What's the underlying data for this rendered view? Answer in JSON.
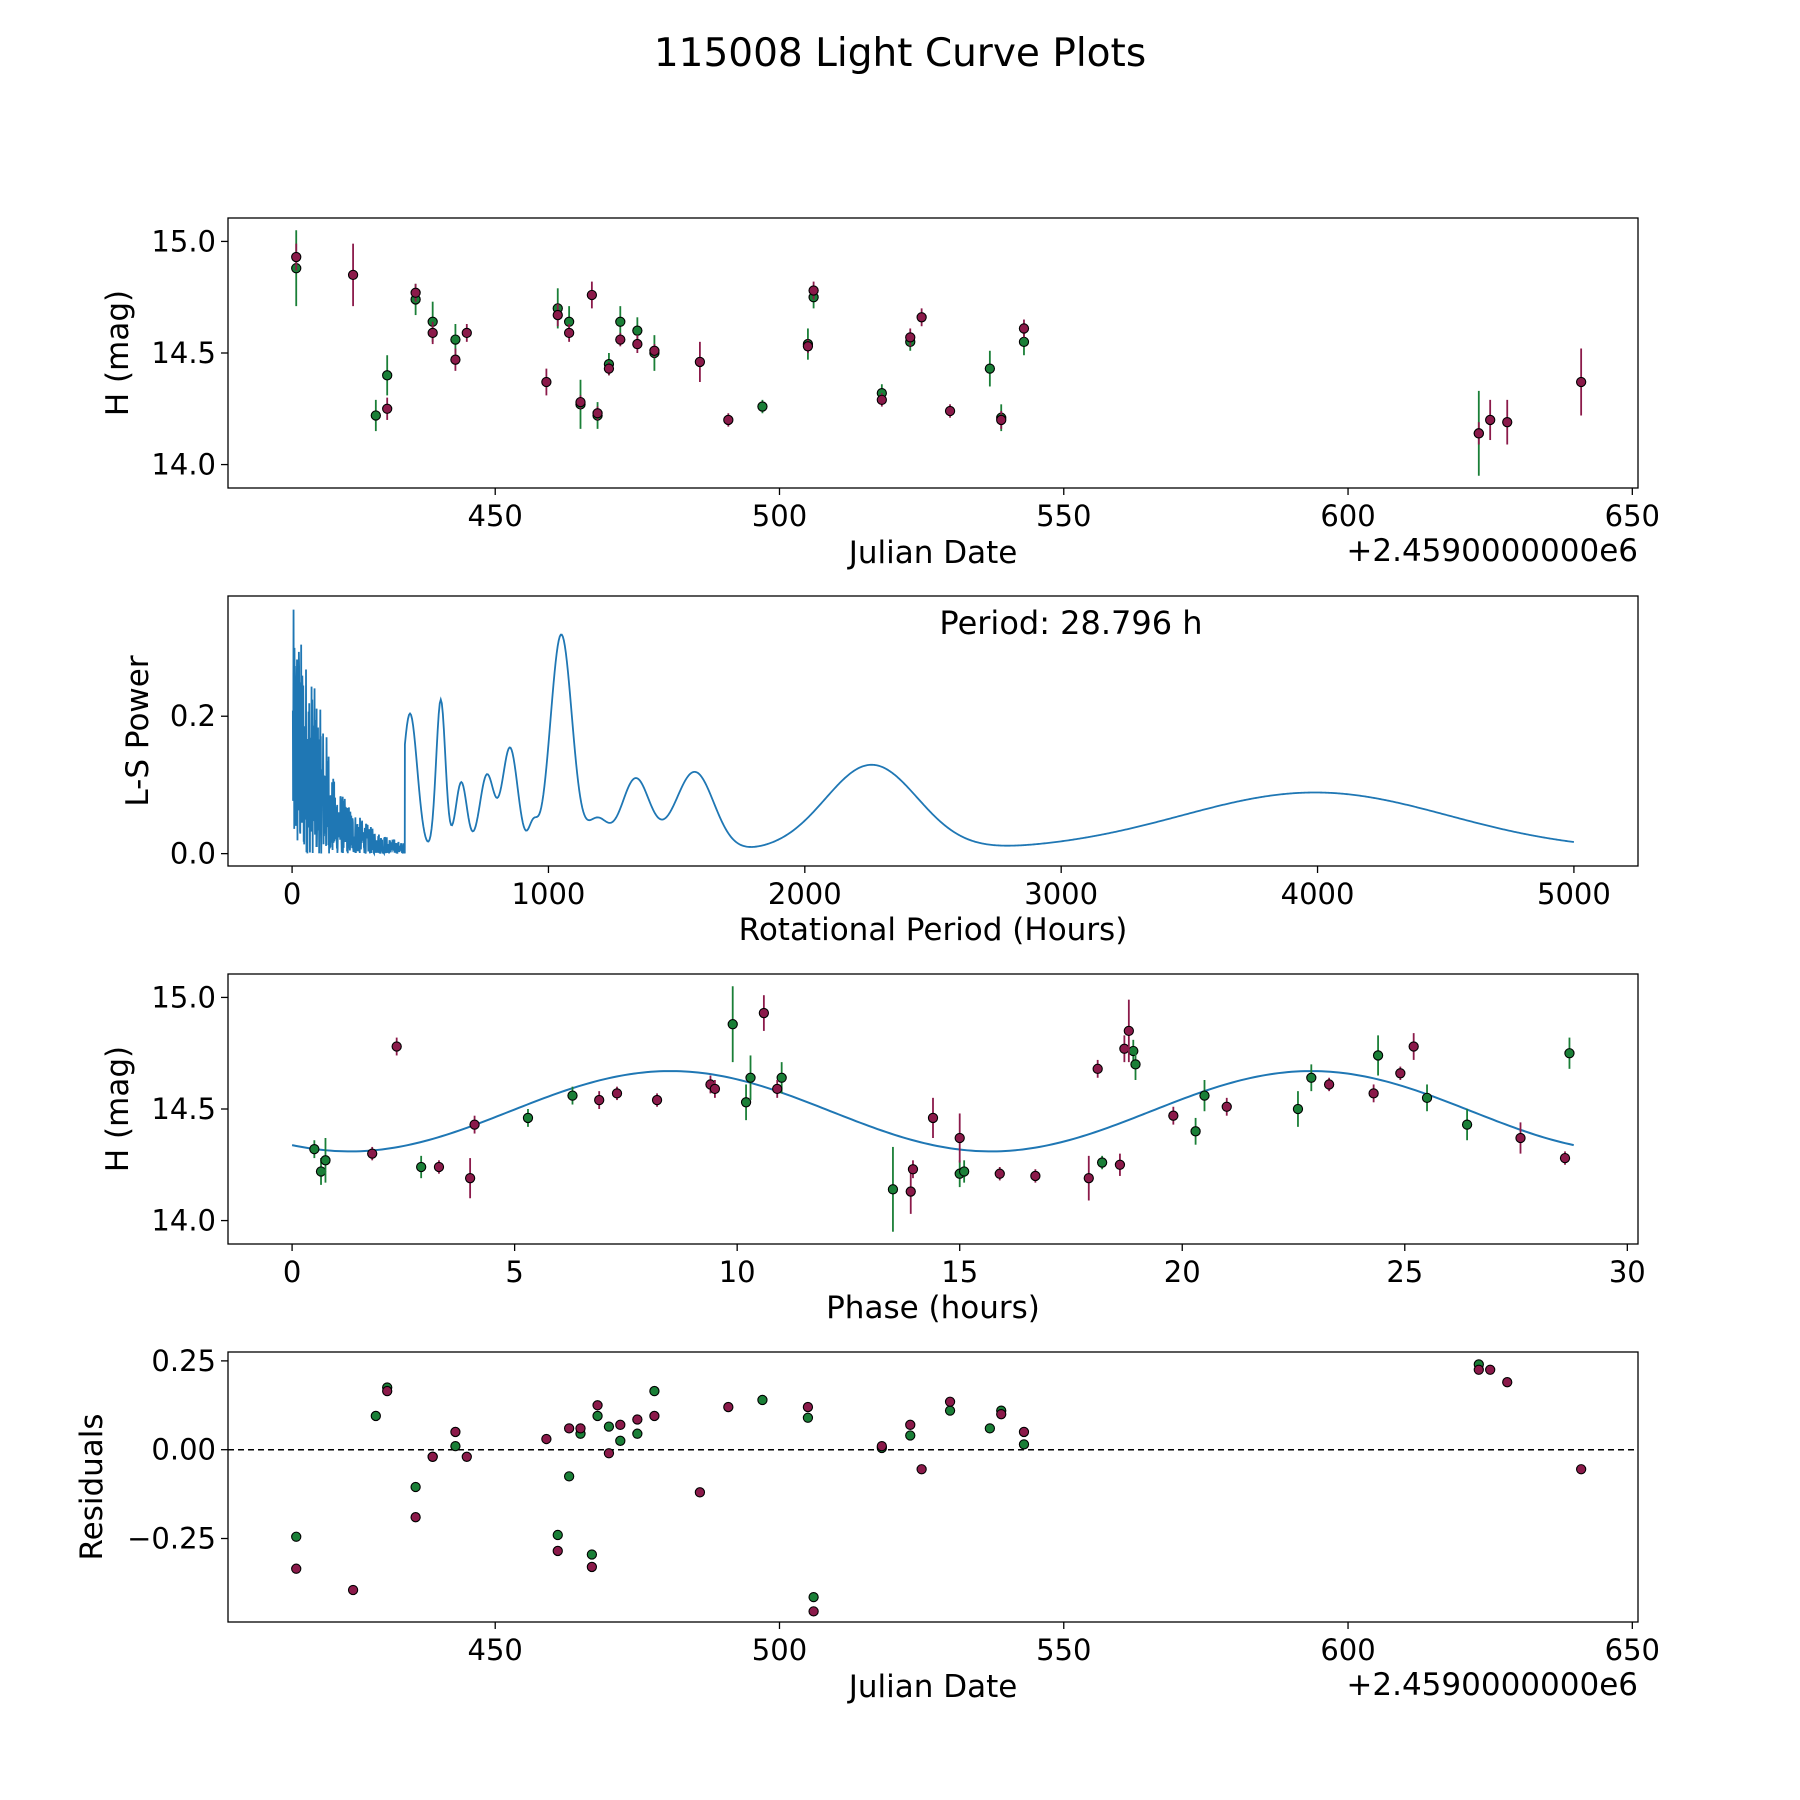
{
  "figure": {
    "title": "115008 Light Curve Plots"
  },
  "colors": {
    "green": "#1a7f37",
    "magenta": "#8b1a4a",
    "model": "#1f77b4",
    "axis": "#000000"
  },
  "chart_data": [
    {
      "name": "light-curve",
      "type": "scatter",
      "xlabel": "Julian Date",
      "ylabel": "H (mag)",
      "offset_text": "+2.4590000000e6",
      "xlim": [
        403,
        651
      ],
      "ylim": [
        13.895,
        15.105
      ],
      "xticks": [
        450,
        500,
        550,
        600,
        650
      ],
      "yticks": [
        14.0,
        14.5,
        15.0
      ],
      "xtick_labels": [
        "450",
        "500",
        "550",
        "600",
        "650"
      ],
      "ytick_labels": [
        "14.0",
        "14.5",
        "15.0"
      ],
      "series": [
        {
          "name": "green",
          "color_key": "green",
          "points": [
            [
              415,
              14.88,
              0.17
            ],
            [
              429,
              14.22,
              0.07
            ],
            [
              431,
              14.4,
              0.09
            ],
            [
              436,
              14.74,
              0.07
            ],
            [
              439,
              14.64,
              0.09
            ],
            [
              443,
              14.56,
              0.07
            ],
            [
              461,
              14.7,
              0.09
            ],
            [
              463,
              14.64,
              0.07
            ],
            [
              465,
              14.27,
              0.11
            ],
            [
              468,
              14.22,
              0.06
            ],
            [
              470,
              14.45,
              0.05
            ],
            [
              472,
              14.64,
              0.07
            ],
            [
              475,
              14.6,
              0.06
            ],
            [
              478,
              14.5,
              0.08
            ],
            [
              497,
              14.26,
              0.03
            ],
            [
              505,
              14.54,
              0.07
            ],
            [
              506,
              14.75,
              0.05
            ],
            [
              518,
              14.32,
              0.04
            ],
            [
              523,
              14.55,
              0.04
            ],
            [
              537,
              14.43,
              0.08
            ],
            [
              539,
              14.21,
              0.06
            ],
            [
              543,
              14.55,
              0.06
            ],
            [
              623,
              14.14,
              0.19
            ]
          ]
        },
        {
          "name": "magenta",
          "color_key": "magenta",
          "points": [
            [
              415,
              14.93,
              0.06
            ],
            [
              425,
              14.85,
              0.14
            ],
            [
              431,
              14.25,
              0.05
            ],
            [
              436,
              14.77,
              0.04
            ],
            [
              439,
              14.59,
              0.05
            ],
            [
              443,
              14.47,
              0.05
            ],
            [
              445,
              14.59,
              0.04
            ],
            [
              459,
              14.37,
              0.06
            ],
            [
              461,
              14.67,
              0.05
            ],
            [
              463,
              14.59,
              0.04
            ],
            [
              465,
              14.28,
              0.03
            ],
            [
              467,
              14.76,
              0.06
            ],
            [
              468,
              14.23,
              0.03
            ],
            [
              470,
              14.43,
              0.03
            ],
            [
              472,
              14.56,
              0.03
            ],
            [
              475,
              14.54,
              0.04
            ],
            [
              478,
              14.51,
              0.03
            ],
            [
              486,
              14.46,
              0.09
            ],
            [
              491,
              14.2,
              0.03
            ],
            [
              505,
              14.53,
              0.03
            ],
            [
              506,
              14.78,
              0.04
            ],
            [
              518,
              14.29,
              0.03
            ],
            [
              523,
              14.57,
              0.04
            ],
            [
              525,
              14.66,
              0.04
            ],
            [
              530,
              14.24,
              0.03
            ],
            [
              539,
              14.2,
              0.04
            ],
            [
              543,
              14.61,
              0.04
            ],
            [
              623,
              14.14,
              0.05
            ],
            [
              625,
              14.2,
              0.09
            ],
            [
              628,
              14.19,
              0.1
            ],
            [
              641,
              14.37,
              0.15
            ]
          ]
        }
      ]
    },
    {
      "name": "periodogram",
      "type": "line",
      "xlabel": "Rotational Period (Hours)",
      "ylabel": "L-S Power",
      "annotation": "Period: 28.796 h",
      "xlim": [
        -250,
        5250
      ],
      "ylim": [
        -0.018,
        0.375
      ],
      "xticks": [
        0,
        1000,
        2000,
        3000,
        4000,
        5000
      ],
      "yticks": [
        0.0,
        0.2
      ],
      "xtick_labels": [
        "0",
        "1000",
        "2000",
        "3000",
        "4000",
        "5000"
      ],
      "ytick_labels": [
        "0.0",
        "0.2"
      ],
      "smooth_peaks": [
        [
          460,
          0.2,
          28
        ],
        [
          580,
          0.22,
          18
        ],
        [
          660,
          0.1,
          22
        ],
        [
          760,
          0.11,
          28
        ],
        [
          850,
          0.15,
          30
        ],
        [
          940,
          0.035,
          18
        ],
        [
          1050,
          0.315,
          42
        ],
        [
          1190,
          0.045,
          40
        ],
        [
          1340,
          0.105,
          55
        ],
        [
          1570,
          0.115,
          75
        ],
        [
          2260,
          0.125,
          180
        ],
        [
          3990,
          0.085,
          520
        ]
      ],
      "noise_region": {
        "max_period": 440,
        "max_power": 0.365
      }
    },
    {
      "name": "phase-folded",
      "type": "scatter",
      "xlabel": "Phase (hours)",
      "ylabel": "H (mag)",
      "xlim": [
        -1.44,
        30.24
      ],
      "ylim": [
        13.895,
        15.105
      ],
      "xticks": [
        0,
        5,
        10,
        15,
        20,
        25,
        30
      ],
      "yticks": [
        14.0,
        14.5,
        15.0
      ],
      "xtick_labels": [
        "0",
        "5",
        "10",
        "15",
        "20",
        "25",
        "30"
      ],
      "ytick_labels": [
        "14.0",
        "14.5",
        "15.0"
      ],
      "model": {
        "period": 28.796,
        "mean": 14.49,
        "amplitude": 0.18,
        "peak_phase": 8.5
      },
      "series": [
        {
          "name": "green",
          "color_key": "green",
          "points": [
            [
              0.5,
              14.32,
              0.04
            ],
            [
              0.65,
              14.22,
              0.06
            ],
            [
              0.75,
              14.27,
              0.1
            ],
            [
              2.9,
              14.24,
              0.05
            ],
            [
              5.3,
              14.46,
              0.04
            ],
            [
              6.3,
              14.56,
              0.04
            ],
            [
              9.9,
              14.88,
              0.17
            ],
            [
              10.2,
              14.53,
              0.08
            ],
            [
              10.3,
              14.64,
              0.1
            ],
            [
              11.0,
              14.64,
              0.07
            ],
            [
              13.5,
              14.14,
              0.19
            ],
            [
              15.0,
              14.21,
              0.06
            ],
            [
              15.1,
              14.22,
              0.05
            ],
            [
              18.2,
              14.26,
              0.03
            ],
            [
              18.9,
              14.76,
              0.05
            ],
            [
              18.95,
              14.7,
              0.07
            ],
            [
              20.3,
              14.4,
              0.06
            ],
            [
              20.5,
              14.56,
              0.07
            ],
            [
              22.6,
              14.5,
              0.08
            ],
            [
              22.9,
              14.64,
              0.06
            ],
            [
              24.4,
              14.74,
              0.09
            ],
            [
              25.5,
              14.55,
              0.06
            ],
            [
              26.4,
              14.43,
              0.07
            ],
            [
              28.7,
              14.75,
              0.07
            ]
          ]
        },
        {
          "name": "magenta",
          "color_key": "magenta",
          "points": [
            [
              1.8,
              14.3,
              0.03
            ],
            [
              2.35,
              14.78,
              0.04
            ],
            [
              3.3,
              14.24,
              0.03
            ],
            [
              4.0,
              14.19,
              0.09
            ],
            [
              4.1,
              14.43,
              0.04
            ],
            [
              6.9,
              14.54,
              0.04
            ],
            [
              7.3,
              14.57,
              0.03
            ],
            [
              8.2,
              14.54,
              0.03
            ],
            [
              9.4,
              14.61,
              0.04
            ],
            [
              9.5,
              14.59,
              0.04
            ],
            [
              10.6,
              14.93,
              0.08
            ],
            [
              10.9,
              14.59,
              0.04
            ],
            [
              13.9,
              14.13,
              0.1
            ],
            [
              13.95,
              14.23,
              0.04
            ],
            [
              14.4,
              14.46,
              0.09
            ],
            [
              15.0,
              14.37,
              0.11
            ],
            [
              15.9,
              14.21,
              0.03
            ],
            [
              16.7,
              14.2,
              0.03
            ],
            [
              17.9,
              14.19,
              0.1
            ],
            [
              18.1,
              14.68,
              0.04
            ],
            [
              18.6,
              14.25,
              0.05
            ],
            [
              18.7,
              14.77,
              0.06
            ],
            [
              18.8,
              14.85,
              0.14
            ],
            [
              19.8,
              14.47,
              0.04
            ],
            [
              21.0,
              14.51,
              0.04
            ],
            [
              23.3,
              14.61,
              0.03
            ],
            [
              24.3,
              14.57,
              0.04
            ],
            [
              24.9,
              14.66,
              0.03
            ],
            [
              25.2,
              14.78,
              0.06
            ],
            [
              27.6,
              14.37,
              0.07
            ],
            [
              28.6,
              14.28,
              0.03
            ]
          ]
        }
      ]
    },
    {
      "name": "residuals",
      "type": "scatter",
      "xlabel": "Julian Date",
      "ylabel": "Residuals",
      "offset_text": "+2.4590000000e6",
      "xlim": [
        403,
        651
      ],
      "ylim": [
        -0.485,
        0.275
      ],
      "xticks": [
        450,
        500,
        550,
        600,
        650
      ],
      "yticks": [
        -0.25,
        0.0,
        0.25
      ],
      "xtick_labels": [
        "450",
        "500",
        "550",
        "600",
        "650"
      ],
      "ytick_labels": [
        "−0.25",
        "0.00",
        "0.25"
      ],
      "reference_line": 0.0,
      "series": [
        {
          "name": "green",
          "color_key": "green",
          "points": [
            [
              415,
              -0.245
            ],
            [
              429,
              0.095
            ],
            [
              431,
              0.175
            ],
            [
              436,
              -0.105
            ],
            [
              439,
              -0.02
            ],
            [
              443,
              0.01
            ],
            [
              461,
              -0.24
            ],
            [
              463,
              -0.075
            ],
            [
              465,
              0.045
            ],
            [
              467,
              -0.295
            ],
            [
              468,
              0.095
            ],
            [
              470,
              0.065
            ],
            [
              472,
              0.025
            ],
            [
              475,
              0.045
            ],
            [
              478,
              0.165
            ],
            [
              497,
              0.14
            ],
            [
              505,
              0.09
            ],
            [
              506,
              -0.415
            ],
            [
              518,
              0.005
            ],
            [
              523,
              0.04
            ],
            [
              530,
              0.11
            ],
            [
              537,
              0.06
            ],
            [
              539,
              0.11
            ],
            [
              543,
              0.015
            ],
            [
              623,
              0.24
            ]
          ]
        },
        {
          "name": "magenta",
          "color_key": "magenta",
          "points": [
            [
              415,
              -0.335
            ],
            [
              425,
              -0.395
            ],
            [
              431,
              0.165
            ],
            [
              436,
              -0.19
            ],
            [
              439,
              -0.02
            ],
            [
              443,
              0.05
            ],
            [
              445,
              -0.02
            ],
            [
              459,
              0.03
            ],
            [
              463,
              0.06
            ],
            [
              465,
              0.06
            ],
            [
              461,
              -0.285
            ],
            [
              467,
              -0.33
            ],
            [
              468,
              0.125
            ],
            [
              470,
              -0.01
            ],
            [
              472,
              0.07
            ],
            [
              475,
              0.085
            ],
            [
              478,
              0.095
            ],
            [
              486,
              -0.12
            ],
            [
              491,
              0.12
            ],
            [
              505,
              0.12
            ],
            [
              506,
              -0.455
            ],
            [
              518,
              0.01
            ],
            [
              523,
              0.07
            ],
            [
              525,
              -0.055
            ],
            [
              530,
              0.135
            ],
            [
              539,
              0.1
            ],
            [
              543,
              0.05
            ],
            [
              623,
              0.225
            ],
            [
              625,
              0.225
            ],
            [
              628,
              0.19
            ],
            [
              641,
              -0.055
            ]
          ]
        }
      ]
    }
  ]
}
